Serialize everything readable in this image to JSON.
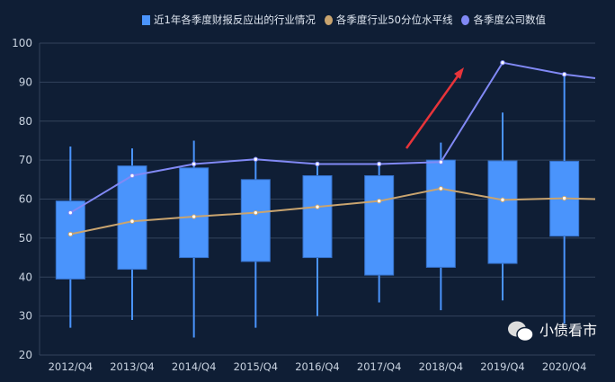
{
  "chart_data": {
    "type": "boxplot",
    "categories": [
      "2012/Q4",
      "2013/Q4",
      "2014/Q4",
      "2015/Q4",
      "2016/Q4",
      "2017/Q4",
      "2018/Q4",
      "2019/Q4",
      "2020/Q4"
    ],
    "ylim": [
      20,
      100
    ],
    "yticks": [
      20,
      30,
      40,
      50,
      60,
      70,
      80,
      90,
      100
    ],
    "grid": true,
    "legend_position": "top",
    "series": [
      {
        "name": "近1年各季度财报反应出的行业情况",
        "type": "boxplot",
        "color": "#4a94fc",
        "values": [
          [
            27,
            39.5,
            51,
            59.5,
            73.5
          ],
          [
            29,
            42,
            54.3,
            68.5,
            73
          ],
          [
            24.5,
            45,
            55.5,
            68,
            75
          ],
          [
            27,
            44,
            56.5,
            65,
            70
          ],
          [
            30,
            45,
            58,
            66,
            69.5
          ],
          [
            33.5,
            40.5,
            59.5,
            66,
            69
          ],
          [
            31.5,
            42.5,
            62.7,
            70,
            74.5
          ],
          [
            34,
            43.5,
            59.8,
            69.8,
            82.2
          ],
          [
            28,
            50.5,
            60.2,
            69.7,
            92
          ]
        ]
      },
      {
        "name": "各季度行业50分位水平线",
        "type": "line",
        "color": "#c9a46f",
        "values": [
          51,
          54.3,
          55.5,
          56.5,
          58,
          59.5,
          62.7,
          59.8,
          60.2
        ],
        "continues_to": 60
      },
      {
        "name": "各季度公司数值",
        "type": "line",
        "color": "#8189f5",
        "values": [
          56.5,
          66,
          69,
          70.2,
          69,
          69,
          69.5,
          95,
          92
        ],
        "continues_to": 91
      }
    ]
  },
  "watermark": "小债看市",
  "colors": {
    "background": "#0f1e35",
    "arrow": "#e8343a"
  }
}
